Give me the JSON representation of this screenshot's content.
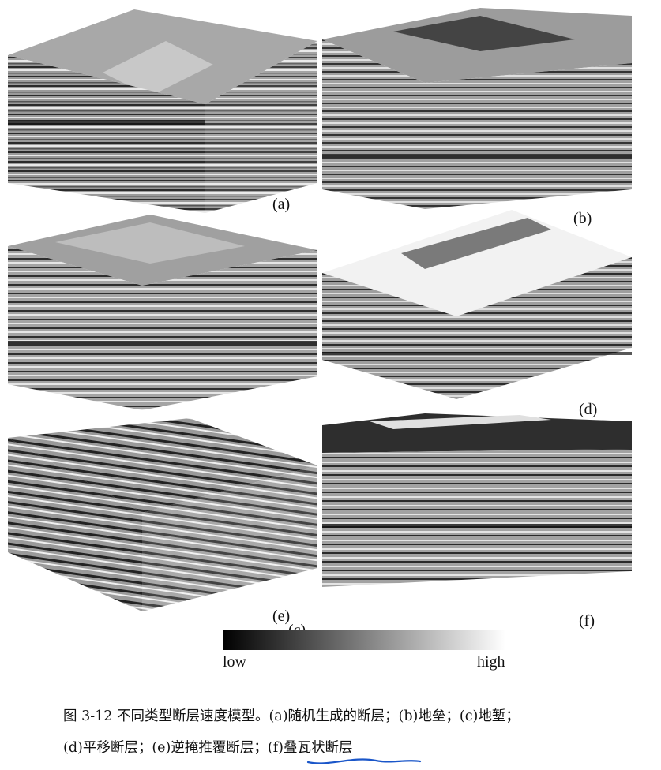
{
  "panels": [
    {
      "id": "a",
      "label": "(a)"
    },
    {
      "id": "b",
      "label": "(b)"
    },
    {
      "id": "c",
      "label": "(c)"
    },
    {
      "id": "d",
      "label": "(d)"
    },
    {
      "id": "e",
      "label": "(e)"
    },
    {
      "id": "f",
      "label": "(f)"
    }
  ],
  "colorbar": {
    "low_label": "low",
    "high_label": "high",
    "from_color": "#000000",
    "to_color": "#ffffff"
  },
  "caption": {
    "line1": "图 3-12 不同类型断层速度模型。(a)随机生成的断层；(b)地垒；(c)地堑；",
    "line2": "(d)平移断层；(e)逆掩推覆断层；(f)叠瓦状断层"
  },
  "annotation": {
    "type": "handwritten-underline",
    "color": "#1a56c9"
  }
}
